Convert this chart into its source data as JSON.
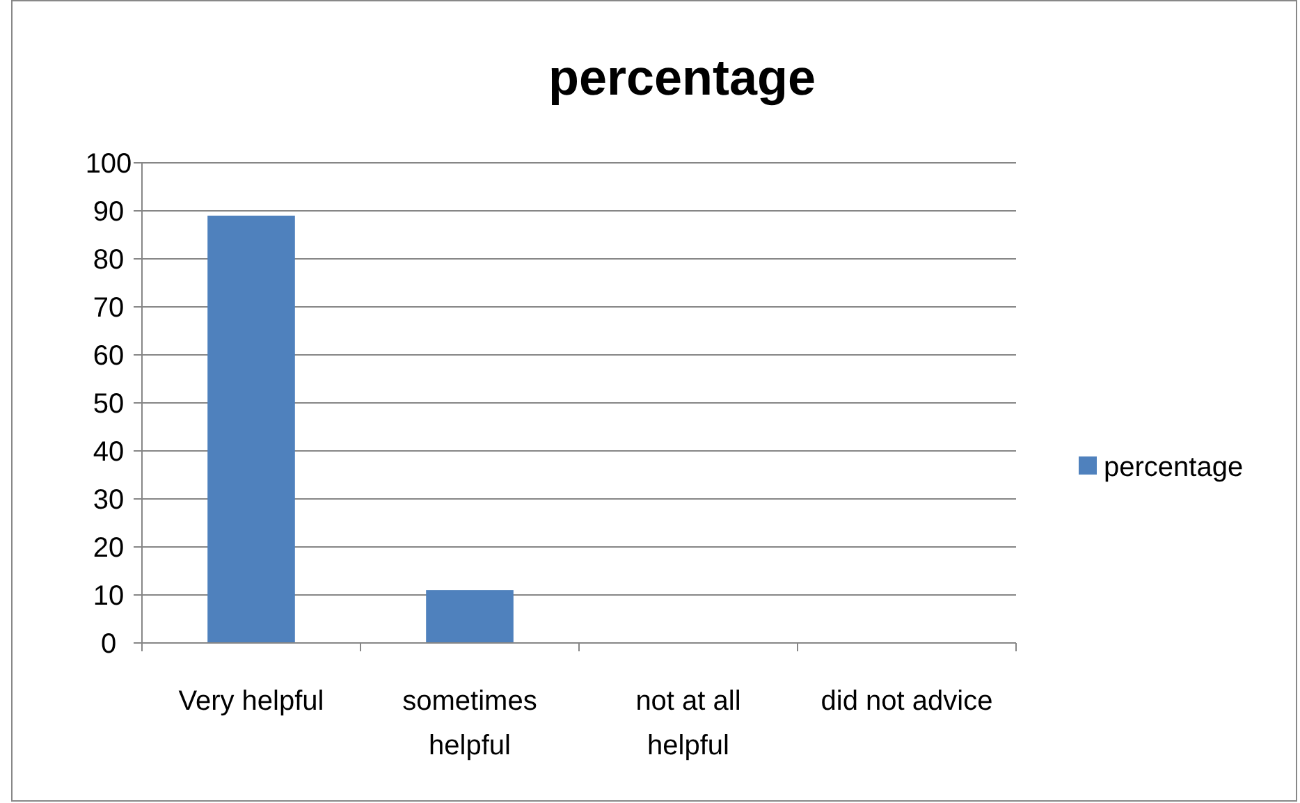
{
  "chart_data": {
    "type": "bar",
    "title": "percentage",
    "categories": [
      "Very helpful",
      "sometimes helpful",
      "not at all helpful",
      "did not advice"
    ],
    "series": [
      {
        "name": "percentage",
        "color": "#4f81bd",
        "values": [
          89,
          11,
          0,
          0
        ]
      }
    ],
    "ylim": [
      0,
      100
    ],
    "yticks": [
      0,
      10,
      20,
      30,
      40,
      50,
      60,
      70,
      80,
      90,
      100
    ],
    "grid": "y",
    "legend": "right"
  }
}
